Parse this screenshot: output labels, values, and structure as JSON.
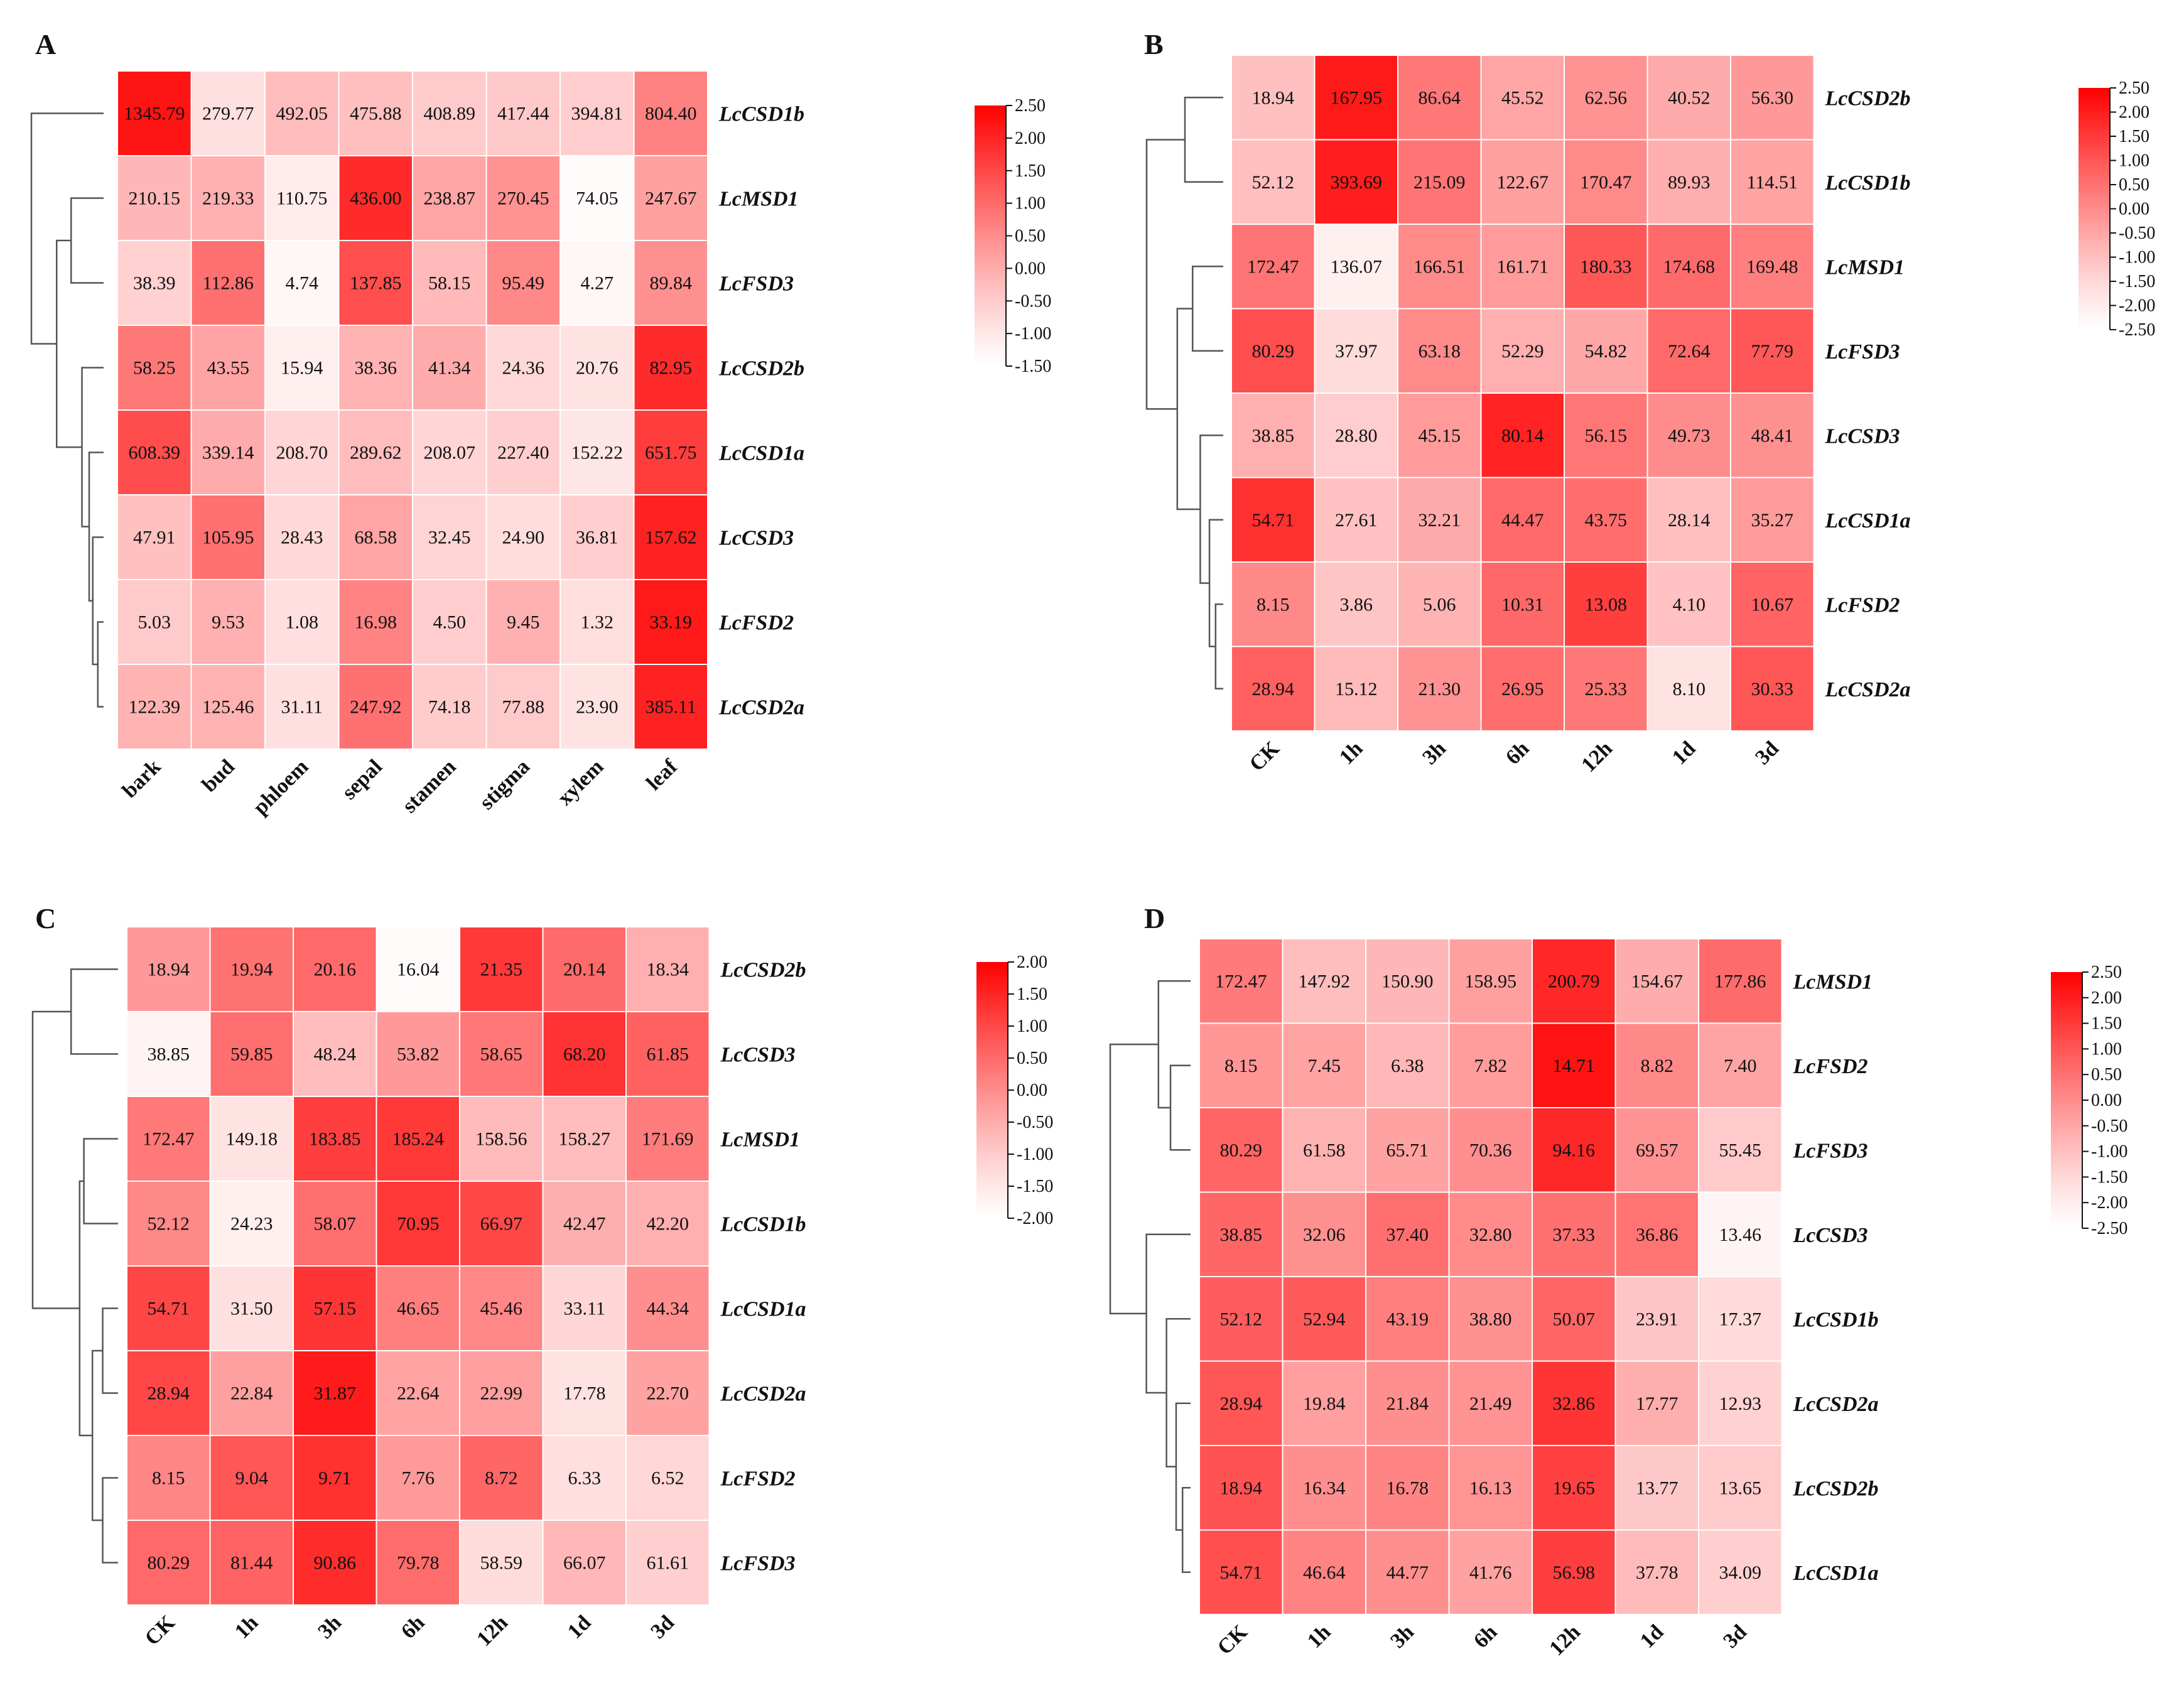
{
  "chart_data": [
    {
      "type": "heatmap",
      "panel": "A",
      "columns": [
        "bark",
        "bud",
        "phloem",
        "sepal",
        "stamen",
        "stigma",
        "xylem",
        "leaf"
      ],
      "rows": [
        "LcCSD1b",
        "LcMSD1",
        "LcFSD3",
        "LcCSD2b",
        "LcCSD1a",
        "LcCSD3",
        "LcFSD2",
        "LcCSD2a"
      ],
      "values": [
        [
          1345.79,
          279.77,
          492.05,
          475.88,
          408.89,
          417.44,
          394.81,
          804.4
        ],
        [
          210.15,
          219.33,
          110.75,
          436.0,
          238.87,
          270.45,
          74.05,
          247.67
        ],
        [
          38.39,
          112.86,
          4.74,
          137.85,
          58.15,
          95.49,
          4.27,
          89.84
        ],
        [
          58.25,
          43.55,
          15.94,
          38.36,
          41.34,
          24.36,
          20.76,
          82.95
        ],
        [
          608.39,
          339.14,
          208.7,
          289.62,
          208.07,
          227.4,
          152.22,
          651.75
        ],
        [
          47.91,
          105.95,
          28.43,
          68.58,
          32.45,
          24.9,
          36.81,
          157.62
        ],
        [
          5.03,
          9.53,
          1.08,
          16.98,
          4.5,
          9.45,
          1.32,
          33.19
        ],
        [
          122.39,
          125.46,
          31.11,
          247.92,
          74.18,
          77.88,
          23.9,
          385.11
        ]
      ],
      "colorbar_ticks": [
        "2.50",
        "2.00",
        "1.50",
        "1.00",
        "0.50",
        "0.00",
        "-0.50",
        "-1.00",
        "-1.50"
      ],
      "colorbar_range": [
        -1.5,
        2.5
      ]
    },
    {
      "type": "heatmap",
      "panel": "B",
      "columns": [
        "CK",
        "1h",
        "3h",
        "6h",
        "12h",
        "1d",
        "3d"
      ],
      "rows": [
        "LcCSD2b",
        "LcCSD1b",
        "LcMSD1",
        "LcFSD3",
        "LcCSD3",
        "LcCSD1a",
        "LcFSD2",
        "LcCSD2a"
      ],
      "values": [
        [
          18.94,
          167.95,
          86.64,
          45.52,
          62.56,
          40.52,
          56.3
        ],
        [
          52.12,
          393.69,
          215.09,
          122.67,
          170.47,
          89.93,
          114.51
        ],
        [
          172.47,
          136.07,
          166.51,
          161.71,
          180.33,
          174.68,
          169.48
        ],
        [
          80.29,
          37.97,
          63.18,
          52.29,
          54.82,
          72.64,
          77.79
        ],
        [
          38.85,
          28.8,
          45.15,
          80.14,
          56.15,
          49.73,
          48.41
        ],
        [
          54.71,
          27.61,
          32.21,
          44.47,
          43.75,
          28.14,
          35.27
        ],
        [
          8.15,
          3.86,
          5.06,
          10.31,
          13.08,
          4.1,
          10.67
        ],
        [
          28.94,
          15.12,
          21.3,
          26.95,
          25.33,
          8.1,
          30.33
        ]
      ],
      "colorbar_ticks": [
        "2.50",
        "2.00",
        "1.50",
        "1.00",
        "0.50",
        "0.00",
        "-0.50",
        "-1.00",
        "-1.50",
        "-2.00",
        "-2.50"
      ],
      "colorbar_range": [
        -2.5,
        2.5
      ]
    },
    {
      "type": "heatmap",
      "panel": "C",
      "columns": [
        "CK",
        "1h",
        "3h",
        "6h",
        "12h",
        "1d",
        "3d"
      ],
      "rows": [
        "LcCSD2b",
        "LcCSD3",
        "LcMSD1",
        "LcCSD1b",
        "LcCSD1a",
        "LcCSD2a",
        "LcFSD2",
        "LcFSD3"
      ],
      "values": [
        [
          18.94,
          19.94,
          20.16,
          16.04,
          21.35,
          20.14,
          18.34
        ],
        [
          38.85,
          59.85,
          48.24,
          53.82,
          58.65,
          68.2,
          61.85
        ],
        [
          172.47,
          149.18,
          183.85,
          185.24,
          158.56,
          158.27,
          171.69
        ],
        [
          52.12,
          24.23,
          58.07,
          70.95,
          66.97,
          42.47,
          42.2
        ],
        [
          54.71,
          31.5,
          57.15,
          46.65,
          45.46,
          33.11,
          44.34
        ],
        [
          28.94,
          22.84,
          31.87,
          22.64,
          22.99,
          17.78,
          22.7
        ],
        [
          8.15,
          9.04,
          9.71,
          7.76,
          8.72,
          6.33,
          6.52
        ],
        [
          80.29,
          81.44,
          90.86,
          79.78,
          58.59,
          66.07,
          61.61
        ]
      ],
      "colorbar_ticks": [
        "2.00",
        "1.50",
        "1.00",
        "0.50",
        "0.00",
        "-0.50",
        "-1.00",
        "-1.50",
        "-2.00"
      ],
      "colorbar_range": [
        -2.0,
        2.0
      ]
    },
    {
      "type": "heatmap",
      "panel": "D",
      "columns": [
        "CK",
        "1h",
        "3h",
        "6h",
        "12h",
        "1d",
        "3d"
      ],
      "rows": [
        "LcMSD1",
        "LcFSD2",
        "LcFSD3",
        "LcCSD3",
        "LcCSD1b",
        "LcCSD2a",
        "LcCSD2b",
        "LcCSD1a"
      ],
      "values": [
        [
          172.47,
          147.92,
          150.9,
          158.95,
          200.79,
          154.67,
          177.86
        ],
        [
          8.15,
          7.45,
          6.38,
          7.82,
          14.71,
          8.82,
          7.4
        ],
        [
          80.29,
          61.58,
          65.71,
          70.36,
          94.16,
          69.57,
          55.45
        ],
        [
          38.85,
          32.06,
          37.4,
          32.8,
          37.33,
          36.86,
          13.46
        ],
        [
          52.12,
          52.94,
          43.19,
          38.8,
          50.07,
          23.91,
          17.37
        ],
        [
          28.94,
          19.84,
          21.84,
          21.49,
          32.86,
          17.77,
          12.93
        ],
        [
          18.94,
          16.34,
          16.78,
          16.13,
          19.65,
          13.77,
          13.65
        ],
        [
          54.71,
          46.64,
          44.77,
          41.76,
          56.98,
          37.78,
          34.09
        ]
      ],
      "colorbar_ticks": [
        "2.50",
        "2.00",
        "1.50",
        "1.00",
        "0.50",
        "0.00",
        "-0.50",
        "-1.00",
        "-1.50",
        "-2.00",
        "-2.50"
      ],
      "colorbar_range": [
        -2.5,
        2.5
      ]
    }
  ],
  "colors": {
    "low": "#ffffff",
    "high": "#ff0000",
    "text": "#111111",
    "grid": "#ffffff",
    "dendrogram": "#555555"
  }
}
